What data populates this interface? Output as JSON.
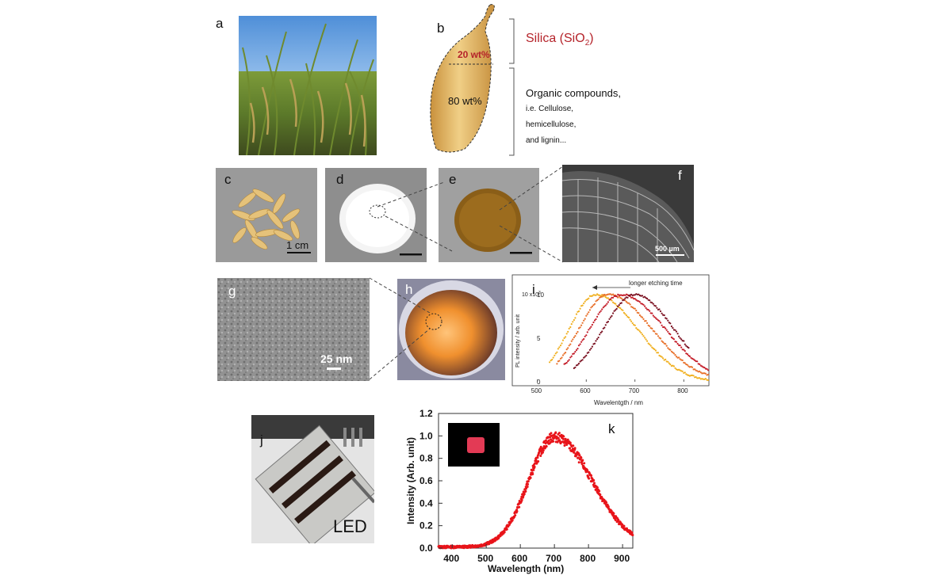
{
  "figure": {
    "panel_labels": {
      "a": "a",
      "b": "b",
      "c": "c",
      "d": "d",
      "e": "e",
      "f": "f",
      "g": "g",
      "h": "h",
      "i": "i",
      "j": "j",
      "k": "k"
    },
    "panel_b": {
      "silica_label": "Silica (SiO",
      "silica_sub": "2",
      "silica_close": ")",
      "silica_pct": "20 wt%",
      "organic_pct": "80 wt%",
      "organic_title": "Organic compounds,",
      "organic_lines": [
        "i.e. Cellulose,",
        "hemicellulose,",
        "and lignin..."
      ]
    },
    "scale_bars": {
      "c": "1 cm",
      "f": "500 µm",
      "g": "25 nm"
    },
    "panel_j": {
      "label": "LED"
    },
    "colors": {
      "silica_red": "#b5232a",
      "led_red": "#e8141a",
      "husk_gold": "#e0b25a"
    }
  },
  "chart_data": [
    {
      "panel": "i",
      "type": "scatter",
      "annotation": "longer etching time",
      "xlabel": "Wavelentgth / nm",
      "ylabel": "PL intensity / arb. unit",
      "y_multiplier": "10 x10",
      "y_multiplier_exp": "3",
      "xlim": [
        450,
        850
      ],
      "ylim": [
        0,
        10
      ],
      "xticks": [
        500,
        600,
        700,
        800
      ],
      "yticks": [
        0,
        5,
        10
      ],
      "series": [
        {
          "color": "#f0b020",
          "peak": 620,
          "sigma_left": 55,
          "sigma_right": 85,
          "x_start": 525,
          "x_end": 850
        },
        {
          "color": "#e8702a",
          "peak": 645,
          "sigma_left": 60,
          "sigma_right": 90,
          "x_start": 540,
          "x_end": 850
        },
        {
          "color": "#c41e2a",
          "peak": 672,
          "sigma_left": 65,
          "sigma_right": 90,
          "x_start": 555,
          "x_end": 850
        },
        {
          "color": "#7a1020",
          "peak": 700,
          "sigma_left": 65,
          "sigma_right": 80,
          "x_start": 575,
          "x_end": 810
        }
      ]
    },
    {
      "panel": "k",
      "type": "scatter",
      "xlabel": "Wavelength (nm)",
      "ylabel": "Intensity (Arb. unit)",
      "xlim": [
        360,
        930
      ],
      "ylim": [
        0,
        1.2
      ],
      "xticks": [
        400,
        500,
        600,
        700,
        800,
        900
      ],
      "yticks": [
        0.0,
        0.2,
        0.4,
        0.6,
        0.8,
        1.0,
        1.2
      ],
      "ytick_labels": [
        "0.0",
        "0.2",
        "0.4",
        "0.6",
        "0.8",
        "1.0",
        "1.2"
      ],
      "series": [
        {
          "color": "#e8141a",
          "peak": 700,
          "sigma_left": 75,
          "sigma_right": 110,
          "x_start": 360,
          "x_end": 930
        }
      ]
    }
  ]
}
